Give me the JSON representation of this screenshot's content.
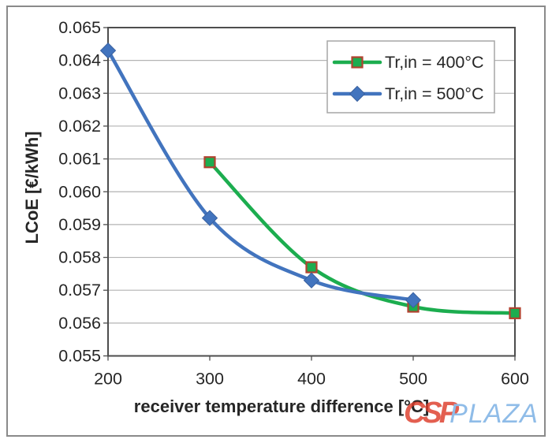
{
  "watermark": {
    "csp": "CSP",
    "plaza": "PLAZA"
  },
  "colors": {
    "background": "#ffffff",
    "outer_border": "#8a8a8a",
    "plot_border": "#4d4d4d",
    "gridline": "#b3b3b3",
    "tick": "#4d4d4d",
    "text": "#262626",
    "legend_border": "#a6a6a6",
    "legend_fill": "#ffffff",
    "watermark_csp": "#dd3c2a",
    "watermark_plaza": "#8fbce8"
  },
  "chart_data": {
    "type": "line",
    "title": "",
    "xlabel": "receiver temperature difference  [°C]",
    "ylabel": "LCoE [€/kWh]",
    "xlim": [
      200,
      600
    ],
    "ylim": [
      0.055,
      0.065
    ],
    "x_ticks": [
      200,
      300,
      400,
      500,
      600
    ],
    "y_ticks": [
      0.065,
      0.064,
      0.063,
      0.062,
      0.061,
      0.06,
      0.059,
      0.058,
      0.057,
      0.056,
      0.055
    ],
    "y_tick_decimals": 3,
    "grid": "horizontal-only",
    "smooth_lines": true,
    "legend_position": "top-right",
    "series": [
      {
        "name": "Tr,in = 400°C",
        "color": "#1cad4f",
        "marker": "square",
        "marker_fill": "#1cad4f",
        "marker_border": "#b2422f",
        "x": [
          300,
          400,
          500,
          600
        ],
        "y": [
          0.0609,
          0.0577,
          0.0565,
          0.0563
        ]
      },
      {
        "name": "Tr,in = 500°C",
        "color": "#4274be",
        "marker": "diamond",
        "marker_fill": "#4274be",
        "marker_border": "#38609f",
        "x": [
          200,
          300,
          400,
          500
        ],
        "y": [
          0.0643,
          0.0592,
          0.0573,
          0.0567
        ]
      }
    ]
  }
}
